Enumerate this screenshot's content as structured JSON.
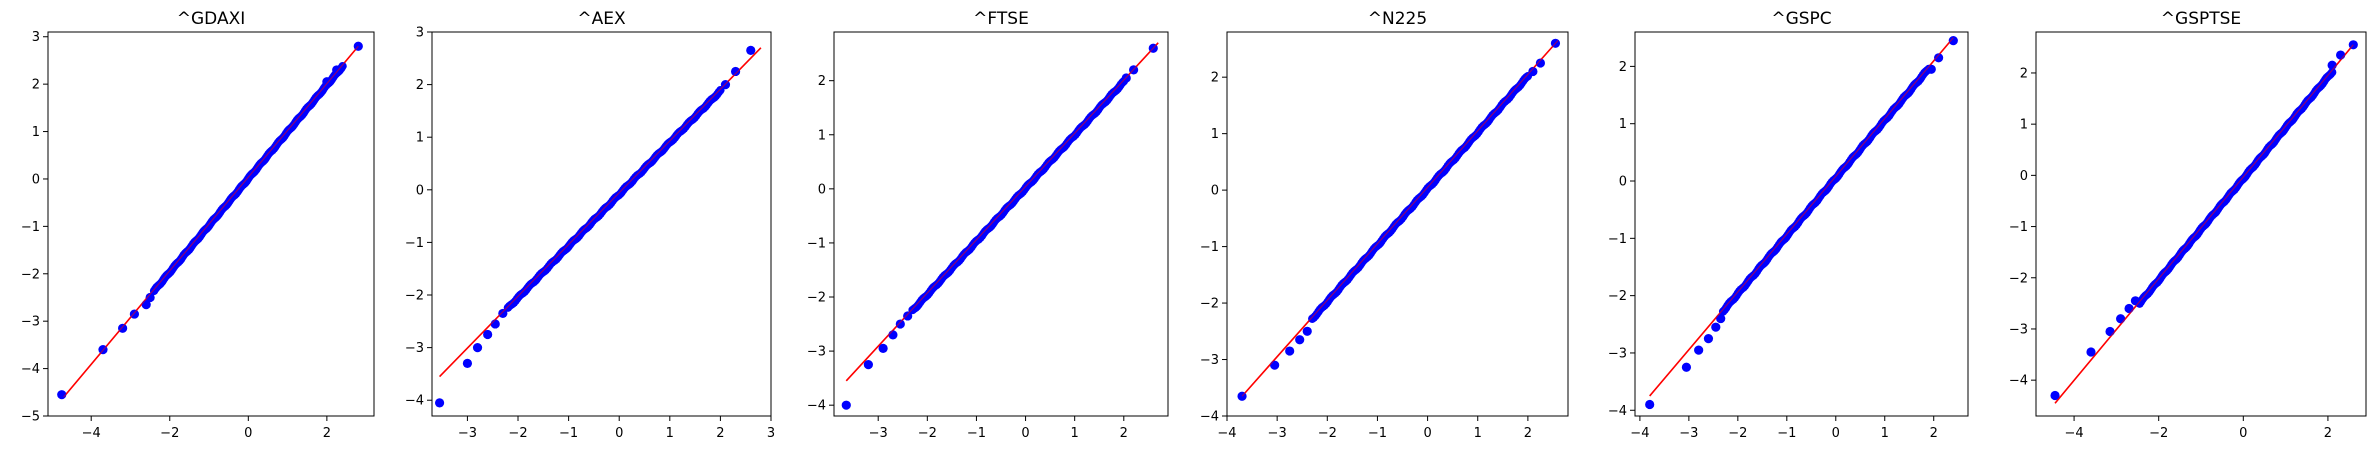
{
  "colors": {
    "points": "#0000ff",
    "fit_line": "#ff0000",
    "axes": "#000000",
    "background": "#ffffff"
  },
  "chart_data": [
    {
      "type": "scatter",
      "title": "^GDAXI",
      "xlim": [
        -5.1,
        3.2
      ],
      "ylim": [
        -5.0,
        3.1
      ],
      "xticks": [
        -4,
        -2,
        0,
        2
      ],
      "yticks": [
        -5,
        -4,
        -3,
        -2,
        -1,
        0,
        1,
        2,
        3
      ],
      "fit_line": {
        "x": [
          -4.7,
          2.8
        ],
        "y": [
          -4.6,
          2.8
        ]
      },
      "outlier_points": {
        "x": [
          -4.75,
          -3.7,
          -3.2,
          -2.9,
          -2.6,
          -2.5
        ],
        "y": [
          -4.55,
          -3.6,
          -3.15,
          -2.85,
          -2.65,
          -2.5
        ]
      },
      "bulk_range": [
        -2.4,
        2.4
      ],
      "upper_points": {
        "x": [
          2.0,
          2.25,
          2.8
        ],
        "y": [
          2.05,
          2.3,
          2.8
        ]
      },
      "grid": false,
      "legend": "none"
    },
    {
      "type": "scatter",
      "title": "^AEX",
      "xlim": [
        -3.7,
        3.0
      ],
      "ylim": [
        -4.3,
        3.0
      ],
      "xticks": [
        -3,
        -2,
        -1,
        0,
        1,
        2,
        3
      ],
      "yticks": [
        -4,
        -3,
        -2,
        -1,
        0,
        1,
        2,
        3
      ],
      "fit_line": {
        "x": [
          -3.55,
          2.8
        ],
        "y": [
          -3.55,
          2.7
        ]
      },
      "outlier_points": {
        "x": [
          -3.55,
          -3.0,
          -2.8,
          -2.6,
          -2.45,
          -2.3
        ],
        "y": [
          -4.05,
          -3.3,
          -3.0,
          -2.75,
          -2.55,
          -2.35
        ]
      },
      "bulk_range": [
        -2.2,
        2.0
      ],
      "upper_points": {
        "x": [
          2.1,
          2.3,
          2.6
        ],
        "y": [
          2.0,
          2.25,
          2.65
        ]
      },
      "grid": false,
      "legend": "none"
    },
    {
      "type": "scatter",
      "title": "^FTSE",
      "xlim": [
        -3.9,
        2.9
      ],
      "ylim": [
        -4.2,
        2.9
      ],
      "xticks": [
        -3,
        -2,
        -1,
        0,
        1,
        2
      ],
      "yticks": [
        -4,
        -3,
        -2,
        -1,
        0,
        1,
        2
      ],
      "fit_line": {
        "x": [
          -3.65,
          2.7
        ],
        "y": [
          -3.55,
          2.7
        ]
      },
      "outlier_points": {
        "x": [
          -3.65,
          -3.2,
          -2.9,
          -2.7,
          -2.55,
          -2.4
        ],
        "y": [
          -4.0,
          -3.25,
          -2.95,
          -2.7,
          -2.5,
          -2.35
        ]
      },
      "bulk_range": [
        -2.3,
        2.0
      ],
      "upper_points": {
        "x": [
          2.05,
          2.2,
          2.6
        ],
        "y": [
          2.05,
          2.2,
          2.6
        ]
      },
      "grid": false,
      "legend": "none"
    },
    {
      "type": "scatter",
      "title": "^N225",
      "xlim": [
        -4.0,
        2.8
      ],
      "ylim": [
        -4.0,
        2.8
      ],
      "xticks": [
        -4,
        -3,
        -2,
        -1,
        0,
        1,
        2
      ],
      "yticks": [
        -4,
        -3,
        -2,
        -1,
        0,
        1,
        2
      ],
      "fit_line": {
        "x": [
          -3.7,
          2.6
        ],
        "y": [
          -3.65,
          2.65
        ]
      },
      "outlier_points": {
        "x": [
          -3.7,
          -3.05,
          -2.75,
          -2.55,
          -2.4
        ],
        "y": [
          -3.65,
          -3.1,
          -2.85,
          -2.65,
          -2.5
        ]
      },
      "bulk_range": [
        -2.3,
        2.0
      ],
      "upper_points": {
        "x": [
          2.1,
          2.25,
          2.55
        ],
        "y": [
          2.1,
          2.25,
          2.6
        ]
      },
      "grid": false,
      "legend": "none"
    },
    {
      "type": "scatter",
      "title": "^GSPC",
      "xlim": [
        -4.1,
        2.7
      ],
      "ylim": [
        -4.1,
        2.6
      ],
      "xticks": [
        -4,
        -3,
        -2,
        -1,
        0,
        1,
        2
      ],
      "yticks": [
        -4,
        -3,
        -2,
        -1,
        0,
        1,
        2
      ],
      "fit_line": {
        "x": [
          -3.8,
          2.4
        ],
        "y": [
          -3.75,
          2.5
        ]
      },
      "outlier_points": {
        "x": [
          -3.8,
          -3.05,
          -2.8,
          -2.6,
          -2.45,
          -2.35
        ],
        "y": [
          -3.9,
          -3.25,
          -2.95,
          -2.75,
          -2.55,
          -2.4
        ]
      },
      "bulk_range": [
        -2.3,
        1.9
      ],
      "upper_points": {
        "x": [
          1.95,
          2.1,
          2.4
        ],
        "y": [
          1.95,
          2.15,
          2.45
        ]
      },
      "grid": false,
      "legend": "none"
    },
    {
      "type": "scatter",
      "title": "^GSPTSE",
      "xlim": [
        -4.9,
        2.9
      ],
      "ylim": [
        -4.7,
        2.8
      ],
      "xticks": [
        -4,
        -2,
        0,
        2
      ],
      "yticks": [
        -4,
        -3,
        -2,
        -1,
        0,
        1,
        2
      ],
      "fit_line": {
        "x": [
          -4.45,
          2.6
        ],
        "y": [
          -4.45,
          2.55
        ]
      },
      "outlier_points": {
        "x": [
          -4.45,
          -3.6,
          -3.15,
          -2.9,
          -2.7,
          -2.55
        ],
        "y": [
          -4.3,
          -3.45,
          -3.05,
          -2.8,
          -2.6,
          -2.45
        ]
      },
      "bulk_range": [
        -2.45,
        2.1
      ],
      "upper_points": {
        "x": [
          2.1,
          2.3,
          2.6
        ],
        "y": [
          2.15,
          2.35,
          2.55
        ]
      },
      "grid": false,
      "legend": "none"
    }
  ]
}
